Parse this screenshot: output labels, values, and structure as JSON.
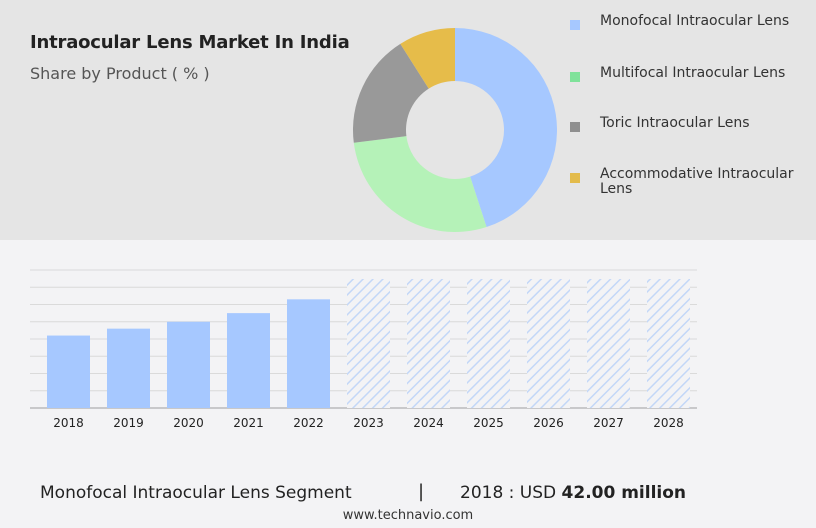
{
  "header": {
    "title": "Intraocular Lens Market In India",
    "subtitle": "Share by Product ( % )"
  },
  "chart_data": [
    {
      "type": "pie",
      "variant": "donut",
      "categories": [
        "Monofocal Intraocular Lens",
        "Multifocal Intraocular Lens",
        "Toric Intraocular Lens",
        "Accommodative Intraocular Lens"
      ],
      "values": [
        45,
        28,
        18,
        9
      ],
      "colors": [
        "#a6c8ff",
        "#b5f2b8",
        "#999999",
        "#e6bc4a"
      ],
      "legend_colors": [
        "#a6c8ff",
        "#7fe29a",
        "#8f8f8f",
        "#e3bb4b"
      ],
      "legend_position": "right"
    },
    {
      "type": "bar",
      "categories": [
        "2018",
        "2019",
        "2020",
        "2021",
        "2022",
        "2023",
        "2024",
        "2025",
        "2026",
        "2027",
        "2028"
      ],
      "values": [
        42,
        46,
        50,
        55,
        63,
        null,
        null,
        null,
        null,
        null,
        null
      ],
      "forecast_categories": [
        "2023",
        "2024",
        "2025",
        "2026",
        "2027",
        "2028"
      ],
      "ylim": [
        0,
        80
      ],
      "grid": true,
      "bar_color": "#a6c8ff"
    }
  ],
  "footer": {
    "segment": "Monofocal Intraocular Lens Segment",
    "divider": "|",
    "year_label": "2018 : USD",
    "value": "42.00 million",
    "source": "www.technavio.com"
  }
}
